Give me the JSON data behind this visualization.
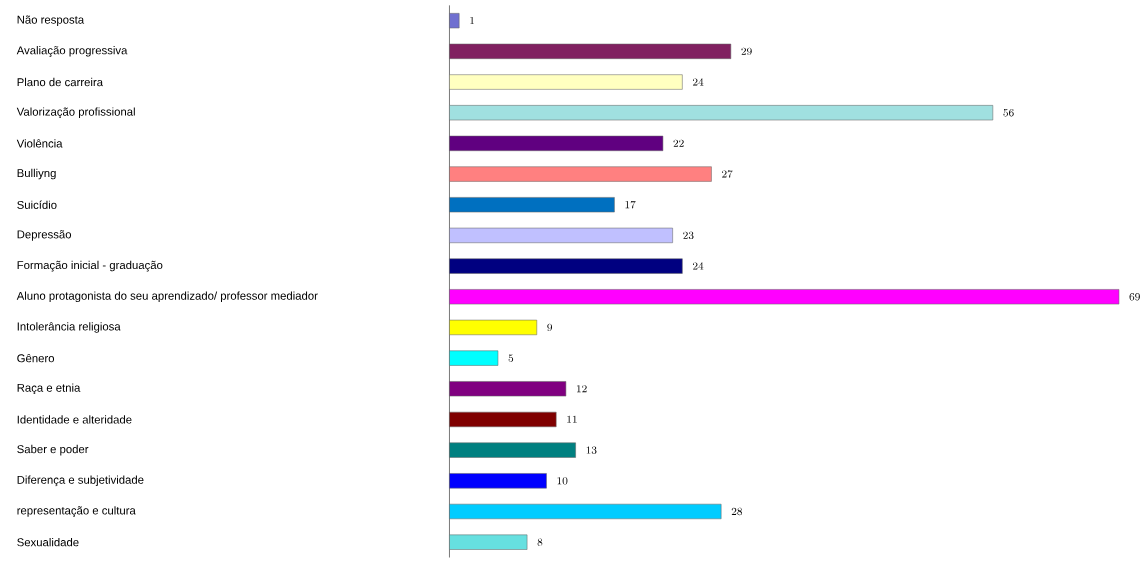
{
  "chart_data": {
    "type": "bar",
    "orientation": "horizontal",
    "data_labels": true,
    "categories": [
      "Não resposta",
      "Avaliação progressiva",
      "Plano de carreira",
      "Valorização profissional",
      "Violência",
      "Bulliyng",
      "Suicídio",
      "Depressão",
      "Formação inicial - graduação",
      "Aluno protagonista do seu aprendizado/ professor mediador",
      "Intolerância religiosa",
      "Gênero",
      "Raça e etnia",
      "Identidade e alteridade",
      "Saber e poder",
      "Diferença e subjetividade",
      "representação e cultura",
      "Sexualidade"
    ],
    "values": [
      1,
      29,
      24,
      56,
      22,
      27,
      17,
      23,
      24,
      69,
      9,
      5,
      12,
      11,
      13,
      10,
      28,
      8
    ],
    "colors": [
      "#7070d0",
      "#802060",
      "#ffffc0",
      "#a0e0e0",
      "#600080",
      "#ff8080",
      "#0070c0",
      "#c0c0ff",
      "#000080",
      "#ff00ff",
      "#ffff00",
      "#00ffff",
      "#800080",
      "#800000",
      "#008080",
      "#0000ff",
      "#00ccff",
      "#66e0e0"
    ]
  }
}
